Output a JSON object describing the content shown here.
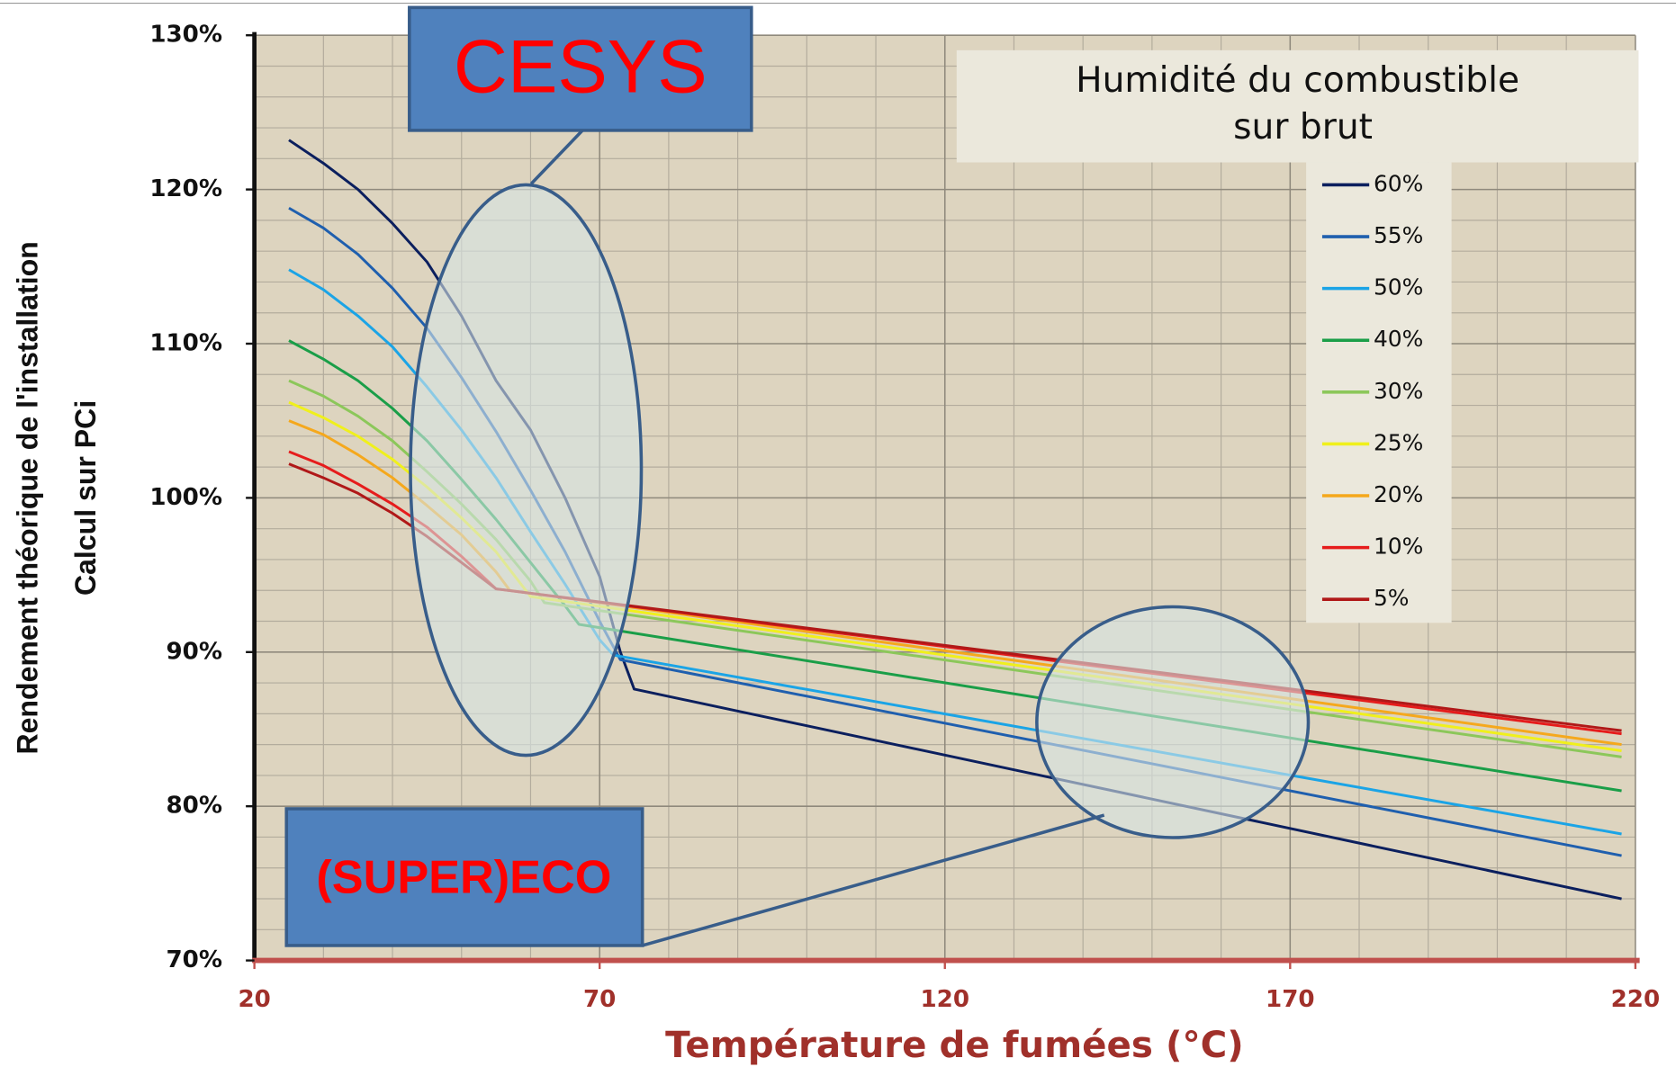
{
  "chart_data": {
    "type": "line",
    "x_label": "Température de fumées (°C)",
    "y_label": [
      "Rendement théorique de l'installation",
      "Calcul sur PCi"
    ],
    "legend_title": [
      "Humidité du combustible",
      "sur brut"
    ],
    "legend": "top-right",
    "grid": true,
    "annotations": [
      "CESYS",
      "(SUPER)ECO"
    ],
    "xlim": [
      20,
      220
    ],
    "xticks": [
      20,
      70,
      120,
      170,
      220
    ],
    "ylim": [
      70,
      130
    ],
    "yticks": [
      {
        "value": 70,
        "label": "70%"
      },
      {
        "value": 80,
        "label": "80%"
      },
      {
        "value": 90,
        "label": "90%"
      },
      {
        "value": 100,
        "label": "100%"
      },
      {
        "value": 110,
        "label": "110%"
      },
      {
        "value": 120,
        "label": "120%"
      },
      {
        "value": 130,
        "label": "130%"
      }
    ],
    "series": [
      {
        "name": "60%",
        "color": "#0b1f5e",
        "x": [
          25,
          30,
          35,
          40,
          45,
          50,
          55,
          60,
          65,
          70,
          73,
          75,
          218
        ],
        "values": [
          123.2,
          121.7,
          120,
          117.8,
          115.3,
          111.8,
          107.6,
          104.4,
          100,
          94.9,
          90,
          87.6,
          74.0
        ]
      },
      {
        "name": "55%",
        "color": "#1f5fae",
        "x": [
          25,
          30,
          35,
          40,
          45,
          50,
          55,
          60,
          65,
          70,
          73,
          218
        ],
        "values": [
          118.8,
          117.5,
          115.8,
          113.6,
          111,
          107.8,
          104.3,
          100.5,
          96.5,
          92,
          89.5,
          76.8
        ]
      },
      {
        "name": "50%",
        "color": "#1ba4e6",
        "x": [
          25,
          30,
          35,
          40,
          45,
          50,
          55,
          60,
          65,
          70,
          72,
          218
        ],
        "values": [
          114.8,
          113.5,
          111.8,
          109.8,
          107.2,
          104.4,
          101.3,
          97.8,
          94.4,
          90.8,
          89.8,
          78.2
        ]
      },
      {
        "name": "40%",
        "color": "#1a9e48",
        "x": [
          25,
          30,
          35,
          40,
          45,
          50,
          55,
          60,
          65,
          67,
          218
        ],
        "values": [
          110.2,
          109,
          107.6,
          105.8,
          103.7,
          101.2,
          98.6,
          95.8,
          93,
          91.8,
          81.0
        ]
      },
      {
        "name": "30%",
        "color": "#8cc75a",
        "x": [
          25,
          30,
          35,
          40,
          45,
          50,
          55,
          60,
          62,
          218
        ],
        "values": [
          107.6,
          106.6,
          105.3,
          103.7,
          101.7,
          99.6,
          97.3,
          94.6,
          93.2,
          83.2
        ]
      },
      {
        "name": "25%",
        "color": "#f0f01c",
        "x": [
          25,
          30,
          35,
          40,
          45,
          50,
          55,
          60,
          218
        ],
        "values": [
          106.2,
          105.2,
          104,
          102.5,
          100.7,
          98.7,
          96.5,
          93.6,
          83.6
        ]
      },
      {
        "name": "20%",
        "color": "#f5a81c",
        "x": [
          25,
          30,
          35,
          40,
          45,
          50,
          55,
          57,
          218
        ],
        "values": [
          105,
          104.1,
          102.8,
          101.3,
          99.5,
          97.6,
          95.2,
          94,
          84.0
        ]
      },
      {
        "name": "10%",
        "color": "#e61c1c",
        "x": [
          25,
          30,
          35,
          40,
          45,
          50,
          55,
          218
        ],
        "values": [
          103,
          102.1,
          100.9,
          99.6,
          98.1,
          96.2,
          94.1,
          84.7
        ]
      },
      {
        "name": "5%",
        "color": "#b01818",
        "x": [
          25,
          30,
          35,
          40,
          45,
          50,
          55,
          218
        ],
        "values": [
          102.2,
          101.3,
          100.3,
          99,
          97.5,
          95.8,
          94.1,
          84.9
        ]
      }
    ]
  }
}
